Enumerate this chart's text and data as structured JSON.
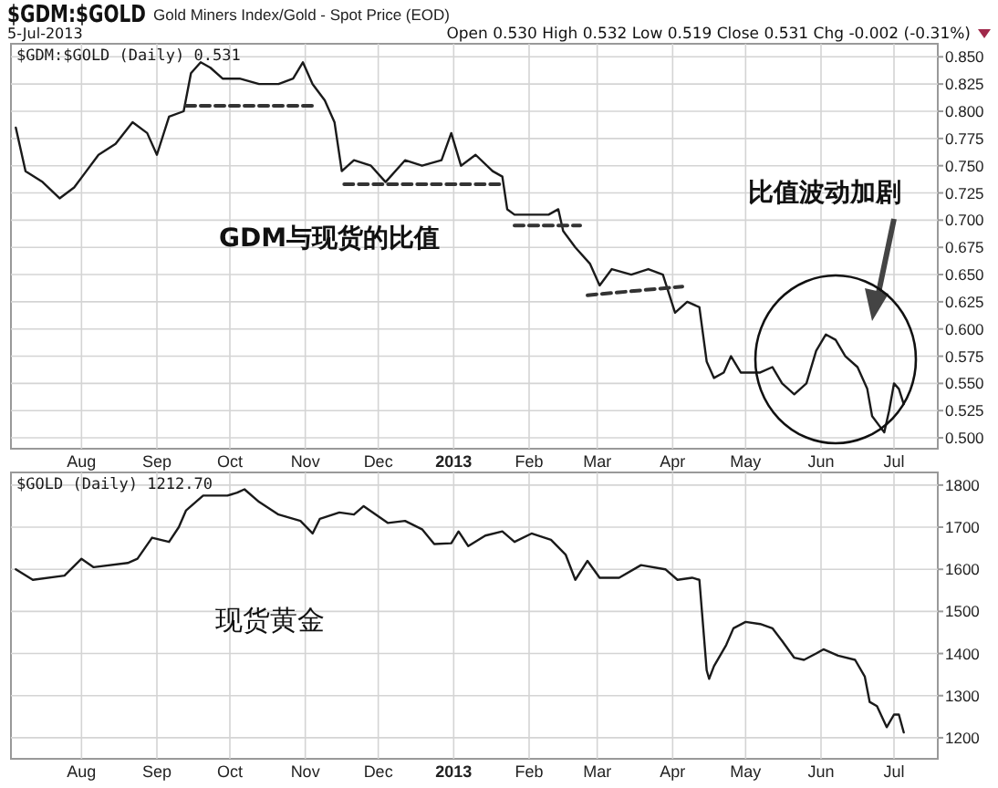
{
  "chart_data": [
    {
      "type": "line",
      "title": "$GDM:$GOLD",
      "subtitle": "Gold Miners Index/Gold - Spot Price (EOD)",
      "legend": "top left",
      "grid": true,
      "xlim": [
        "2012-07-03",
        "2013-07-19"
      ],
      "ylim": [
        0.49,
        0.862
      ],
      "xticks": [
        {
          "value": "2012-08-01",
          "label": "Aug"
        },
        {
          "value": "2012-09-01",
          "label": "Sep"
        },
        {
          "value": "2012-10-01",
          "label": "Oct"
        },
        {
          "value": "2012-11-01",
          "label": "Nov"
        },
        {
          "value": "2012-12-01",
          "label": "Dec"
        },
        {
          "value": "2013-01-01",
          "label": "2013"
        },
        {
          "value": "2013-02-01",
          "label": "Feb"
        },
        {
          "value": "2013-03-01",
          "label": "Mar"
        },
        {
          "value": "2013-04-01",
          "label": "Apr"
        },
        {
          "value": "2013-05-01",
          "label": "May"
        },
        {
          "value": "2013-06-01",
          "label": "Jun"
        },
        {
          "value": "2013-07-01",
          "label": "Jul"
        }
      ],
      "yticks": [
        {
          "value": 0.5,
          "label": "0.500"
        },
        {
          "value": 0.525,
          "label": "0.525"
        },
        {
          "value": 0.55,
          "label": "0.550"
        },
        {
          "value": 0.575,
          "label": "0.575"
        },
        {
          "value": 0.6,
          "label": "0.600"
        },
        {
          "value": 0.625,
          "label": "0.625"
        },
        {
          "value": 0.65,
          "label": "0.650"
        },
        {
          "value": 0.675,
          "label": "0.675"
        },
        {
          "value": 0.7,
          "label": "0.700"
        },
        {
          "value": 0.725,
          "label": "0.725"
        },
        {
          "value": 0.75,
          "label": "0.750"
        },
        {
          "value": 0.775,
          "label": "0.775"
        },
        {
          "value": 0.8,
          "label": "0.800"
        },
        {
          "value": 0.825,
          "label": "0.825"
        },
        {
          "value": 0.85,
          "label": "0.850"
        }
      ],
      "series": [
        {
          "name": "$GDM:$GOLD (Daily) 0.531",
          "color": "#1a1a1a",
          "line_style": "solid",
          "x": [
            "2012-07-05",
            "2012-07-09",
            "2012-07-16",
            "2012-07-23",
            "2012-07-29",
            "2012-08-03",
            "2012-08-08",
            "2012-08-15",
            "2012-08-22",
            "2012-08-28",
            "2012-09-01",
            "2012-09-06",
            "2012-09-12",
            "2012-09-15",
            "2012-09-19",
            "2012-09-23",
            "2012-09-28",
            "2012-10-05",
            "2012-10-13",
            "2012-10-21",
            "2012-10-27",
            "2012-10-31",
            "2012-11-04",
            "2012-11-09",
            "2012-11-13",
            "2012-11-16",
            "2012-11-21",
            "2012-11-28",
            "2012-12-04",
            "2012-12-12",
            "2012-12-19",
            "2012-12-27",
            "2012-12-31",
            "2013-01-04",
            "2013-01-10",
            "2013-01-17",
            "2013-01-21",
            "2013-01-23",
            "2013-01-26",
            "2013-02-01",
            "2013-02-09",
            "2013-02-13",
            "2013-02-15",
            "2013-02-20",
            "2013-02-26",
            "2013-03-02",
            "2013-03-07",
            "2013-03-15",
            "2013-03-22",
            "2013-03-28",
            "2013-04-02",
            "2013-04-07",
            "2013-04-12",
            "2013-04-15",
            "2013-04-18",
            "2013-04-22",
            "2013-04-25",
            "2013-04-29",
            "2013-05-07",
            "2013-05-12",
            "2013-05-16",
            "2013-05-21",
            "2013-05-26",
            "2013-05-30",
            "2013-06-03",
            "2013-06-07",
            "2013-06-11",
            "2013-06-16",
            "2013-06-20",
            "2013-06-22",
            "2013-06-27",
            "2013-06-29",
            "2013-07-01",
            "2013-07-03",
            "2013-07-05"
          ],
          "values": [
            0.785,
            0.745,
            0.735,
            0.72,
            0.73,
            0.745,
            0.76,
            0.77,
            0.79,
            0.78,
            0.76,
            0.795,
            0.8,
            0.835,
            0.845,
            0.84,
            0.83,
            0.83,
            0.825,
            0.825,
            0.83,
            0.845,
            0.825,
            0.81,
            0.79,
            0.745,
            0.755,
            0.75,
            0.735,
            0.755,
            0.75,
            0.755,
            0.78,
            0.75,
            0.76,
            0.745,
            0.74,
            0.71,
            0.705,
            0.705,
            0.705,
            0.71,
            0.69,
            0.675,
            0.66,
            0.64,
            0.655,
            0.65,
            0.655,
            0.65,
            0.615,
            0.625,
            0.62,
            0.57,
            0.555,
            0.56,
            0.575,
            0.56,
            0.56,
            0.565,
            0.55,
            0.54,
            0.55,
            0.58,
            0.595,
            0.59,
            0.575,
            0.565,
            0.545,
            0.52,
            0.505,
            0.525,
            0.55,
            0.545,
            0.531
          ]
        },
        {
          "color": "#333333",
          "line_style": "dashed",
          "x": [
            "2012-09-13",
            "2012-11-05"
          ],
          "values": [
            0.805,
            0.805
          ]
        },
        {
          "color": "#333333",
          "line_style": "dashed",
          "x": [
            "2012-11-17",
            "2013-01-20"
          ],
          "values": [
            0.733,
            0.733
          ]
        },
        {
          "color": "#333333",
          "line_style": "dashed",
          "x": [
            "2013-01-26",
            "2013-02-22"
          ],
          "values": [
            0.695,
            0.695
          ]
        },
        {
          "color": "#333333",
          "line_style": "dashed",
          "x": [
            "2013-02-25",
            "2013-04-05"
          ],
          "values": [
            0.631,
            0.639
          ]
        }
      ],
      "annotations": [
        "5-Jul-2013",
        "Open 0.530  High 0.532  Low 0.519  Close 0.531  Chg -0.002 (-0.31%)",
        "GDM与现货的比值",
        "比值波动加剧"
      ]
    },
    {
      "type": "line",
      "legend": "top left",
      "grid": true,
      "xlim": [
        "2012-07-03",
        "2013-07-19"
      ],
      "ylim": [
        1150,
        1830
      ],
      "xticks": [
        {
          "value": "2012-08-01",
          "label": "Aug"
        },
        {
          "value": "2012-09-01",
          "label": "Sep"
        },
        {
          "value": "2012-10-01",
          "label": "Oct"
        },
        {
          "value": "2012-11-01",
          "label": "Nov"
        },
        {
          "value": "2012-12-01",
          "label": "Dec"
        },
        {
          "value": "2013-01-01",
          "label": "2013"
        },
        {
          "value": "2013-02-01",
          "label": "Feb"
        },
        {
          "value": "2013-03-01",
          "label": "Mar"
        },
        {
          "value": "2013-04-01",
          "label": "Apr"
        },
        {
          "value": "2013-05-01",
          "label": "May"
        },
        {
          "value": "2013-06-01",
          "label": "Jun"
        },
        {
          "value": "2013-07-01",
          "label": "Jul"
        }
      ],
      "yticks": [
        1200,
        1300,
        1400,
        1500,
        1600,
        1700,
        1800
      ],
      "series": [
        {
          "name": "$GOLD (Daily) 1212.70",
          "color": "#1a1a1a",
          "line_style": "solid",
          "x": [
            "2012-07-05",
            "2012-07-12",
            "2012-07-25",
            "2012-08-01",
            "2012-08-06",
            "2012-08-20",
            "2012-08-24",
            "2012-08-30",
            "2012-09-06",
            "2012-09-10",
            "2012-09-13",
            "2012-09-20",
            "2012-09-30",
            "2012-10-04",
            "2012-10-07",
            "2012-10-13",
            "2012-10-21",
            "2012-10-30",
            "2012-11-04",
            "2012-11-07",
            "2012-11-15",
            "2012-11-21",
            "2012-11-25",
            "2012-11-30",
            "2012-12-05",
            "2012-12-12",
            "2012-12-19",
            "2012-12-24",
            "2012-12-31",
            "2013-01-03",
            "2013-01-07",
            "2013-01-14",
            "2013-01-21",
            "2013-01-26",
            "2013-02-02",
            "2013-02-10",
            "2013-02-16",
            "2013-02-20",
            "2013-02-25",
            "2013-03-02",
            "2013-03-10",
            "2013-03-19",
            "2013-03-29",
            "2013-04-03",
            "2013-04-09",
            "2013-04-12",
            "2013-04-15",
            "2013-04-16",
            "2013-04-18",
            "2013-04-23",
            "2013-04-26",
            "2013-05-01",
            "2013-05-07",
            "2013-05-12",
            "2013-05-16",
            "2013-05-21",
            "2013-05-25",
            "2013-05-30",
            "2013-06-02",
            "2013-06-08",
            "2013-06-15",
            "2013-06-19",
            "2013-06-21",
            "2013-06-24",
            "2013-06-28",
            "2013-07-01",
            "2013-07-03",
            "2013-07-05"
          ],
          "values": [
            1600,
            1575,
            1585,
            1625,
            1605,
            1615,
            1625,
            1675,
            1665,
            1700,
            1740,
            1775,
            1775,
            1782,
            1790,
            1760,
            1730,
            1715,
            1685,
            1720,
            1735,
            1730,
            1750,
            1730,
            1710,
            1715,
            1695,
            1660,
            1662,
            1690,
            1655,
            1680,
            1690,
            1665,
            1685,
            1670,
            1635,
            1575,
            1620,
            1580,
            1580,
            1610,
            1600,
            1575,
            1580,
            1575,
            1360,
            1340,
            1370,
            1420,
            1460,
            1475,
            1470,
            1460,
            1430,
            1390,
            1385,
            1400,
            1410,
            1395,
            1385,
            1345,
            1285,
            1275,
            1225,
            1255,
            1255,
            1212.7
          ]
        }
      ],
      "annotations": [
        "现货黄金"
      ]
    }
  ]
}
